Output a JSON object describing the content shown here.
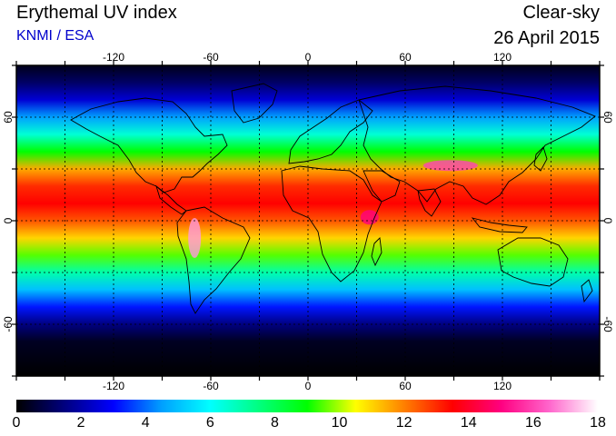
{
  "header": {
    "title": "Erythemal UV index",
    "subtitle": "KNMI / ESA",
    "mode": "Clear-sky",
    "date": "26 April 2015"
  },
  "map": {
    "projection": "equirectangular",
    "lon_range": [
      -180,
      180
    ],
    "lat_range": [
      -90,
      90
    ],
    "lon_ticks": [
      -120,
      -60,
      0,
      60,
      120
    ],
    "lat_ticks": [
      60,
      0,
      -60
    ],
    "lon_tick_labels": [
      "-120",
      "-60",
      "0",
      "60",
      "120"
    ],
    "lat_tick_labels": [
      "60",
      "0",
      "-60"
    ],
    "gridlines": "dashed every 30 degrees",
    "zonal_uv_profile": [
      {
        "lat": 90,
        "uv": 0.3
      },
      {
        "lat": 80,
        "uv": 1.2
      },
      {
        "lat": 70,
        "uv": 2.5
      },
      {
        "lat": 60,
        "uv": 4.5
      },
      {
        "lat": 50,
        "uv": 6.5
      },
      {
        "lat": 40,
        "uv": 9
      },
      {
        "lat": 30,
        "uv": 11.5
      },
      {
        "lat": 20,
        "uv": 13
      },
      {
        "lat": 10,
        "uv": 13.5
      },
      {
        "lat": 0,
        "uv": 12.5
      },
      {
        "lat": -10,
        "uv": 11
      },
      {
        "lat": -20,
        "uv": 9.5
      },
      {
        "lat": -30,
        "uv": 7
      },
      {
        "lat": -40,
        "uv": 5
      },
      {
        "lat": -50,
        "uv": 3.2
      },
      {
        "lat": -60,
        "uv": 1.5
      },
      {
        "lat": -70,
        "uv": 0.4
      },
      {
        "lat": -90,
        "uv": 0
      }
    ],
    "hotspots": [
      {
        "region": "Tibetan Plateau",
        "uv": 16
      },
      {
        "region": "Andes",
        "uv": 17
      },
      {
        "region": "East Africa",
        "uv": 15
      }
    ]
  },
  "colorbar": {
    "min": 0,
    "max": 18,
    "tick_labels": [
      "0",
      "2",
      "4",
      "6",
      "8",
      "10",
      "12",
      "14",
      "16",
      "18"
    ],
    "colors": [
      "#000000",
      "#000080",
      "#0000ff",
      "#00a0ff",
      "#00ffff",
      "#00ff80",
      "#00ff00",
      "#ffff00",
      "#ff8000",
      "#ff0000",
      "#ff0080",
      "#ff66cc",
      "#ffffff"
    ]
  }
}
